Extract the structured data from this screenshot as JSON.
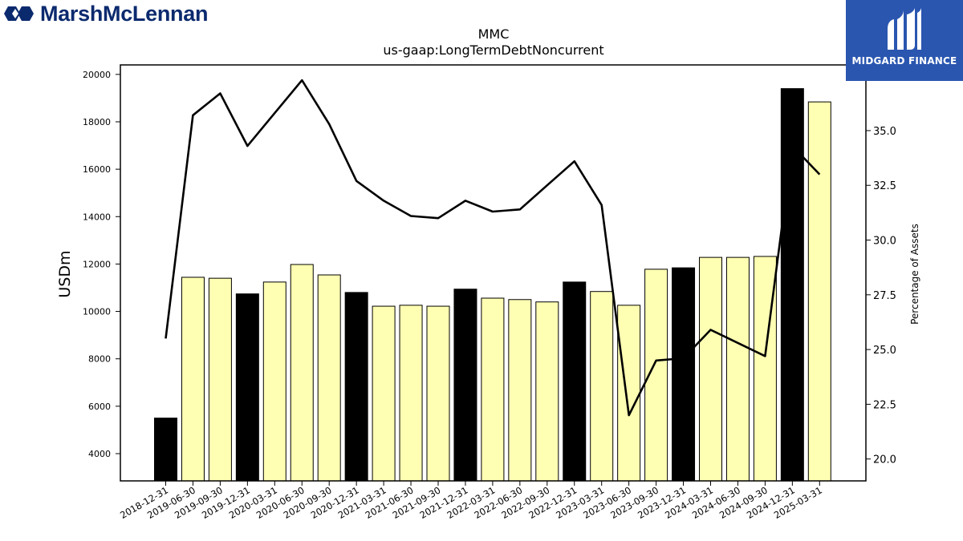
{
  "header": {
    "company_logo_text": "MarshMcLennan",
    "watermark_text": "MIDGARD FINANCE"
  },
  "colors": {
    "highlight_bar": "#000000",
    "normal_bar": "#ffffb3",
    "line": "#000000"
  },
  "chart_data": {
    "type": "bar",
    "title": "MMC",
    "subtitle": "us-gaap:LongTermDebtNoncurrent",
    "ylabel": "USDm",
    "y2label": "Percentage of Assets",
    "ylim": [
      2850,
      20400
    ],
    "y2lim": [
      19.0,
      38.0
    ],
    "yticks": [
      4000,
      6000,
      8000,
      10000,
      12000,
      14000,
      16000,
      18000,
      20000
    ],
    "y2ticks": [
      20.0,
      22.5,
      25.0,
      27.5,
      30.0,
      32.5,
      35.0
    ],
    "categories": [
      "2018-12-31",
      "2019-06-30",
      "2019-09-30",
      "2019-12-31",
      "2020-03-31",
      "2020-06-30",
      "2020-09-30",
      "2020-12-31",
      "2021-03-31",
      "2021-06-30",
      "2021-09-30",
      "2021-12-31",
      "2022-03-31",
      "2022-06-30",
      "2022-09-30",
      "2022-12-31",
      "2023-03-31",
      "2023-06-30",
      "2023-09-30",
      "2023-12-31",
      "2024-03-31",
      "2024-06-30",
      "2024-09-30",
      "2024-12-31",
      "2025-03-31"
    ],
    "series": [
      {
        "axis": "left",
        "kind": "bar",
        "values": [
          5500,
          11440,
          11400,
          10740,
          11240,
          11980,
          11540,
          10800,
          10220,
          10260,
          10220,
          10940,
          10560,
          10500,
          10400,
          11240,
          10840,
          10260,
          11780,
          11840,
          12280,
          12280,
          12320,
          19400,
          18840
        ],
        "highlight": [
          true,
          false,
          false,
          true,
          false,
          false,
          false,
          true,
          false,
          false,
          false,
          true,
          false,
          false,
          false,
          true,
          false,
          false,
          false,
          true,
          false,
          false,
          false,
          true,
          false
        ]
      },
      {
        "axis": "right",
        "kind": "line",
        "values": [
          25.5,
          35.7,
          36.7,
          34.3,
          35.8,
          37.3,
          35.3,
          32.7,
          31.8,
          31.1,
          31.0,
          31.8,
          31.3,
          31.4,
          32.5,
          33.6,
          31.6,
          22.0,
          24.5,
          24.6,
          25.9,
          25.3,
          24.7,
          34.3,
          33.0
        ]
      }
    ]
  }
}
